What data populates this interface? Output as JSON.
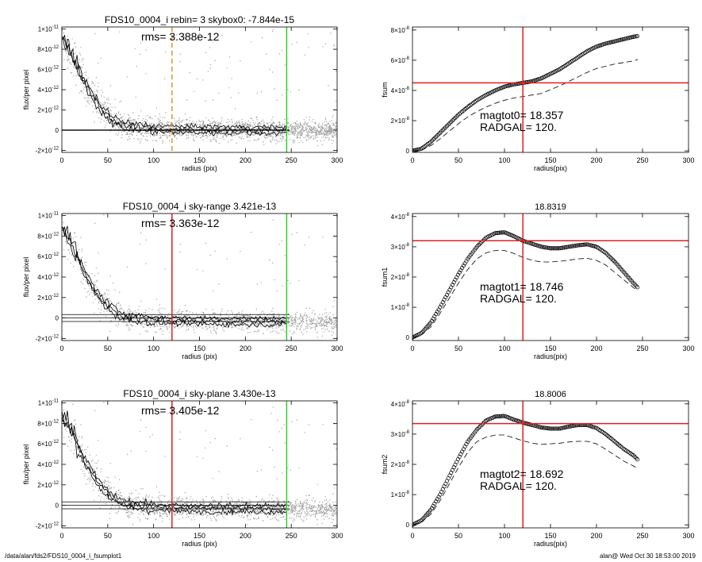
{
  "footer": {
    "path": "/data/alan/fds2/FDS10_0004_i_fsumplot1",
    "user_time": "alan@  Wed Oct 30 18:53:00 2019"
  },
  "colors": {
    "scatter": "#a0a0a0",
    "profile": "#000000",
    "orange_marker": "#e8902a",
    "red_marker": "#e02020",
    "green_marker": "#30d030",
    "dashed_curve": "#000000"
  },
  "chart_data": [
    {
      "id": "profile0",
      "type": "scatter",
      "title": "FDS10_0004_i rebin= 3    skybox0: -7.844e-15",
      "annotation": "rms= 3.388e-12",
      "xlabel": "radius (pix)",
      "ylabel": "flux/per pixel",
      "xlim": [
        0,
        300
      ],
      "ylim": [
        -2.2e-12,
        1.02e-11
      ],
      "xticks": [
        "0",
        "50",
        "100",
        "150",
        "200",
        "250",
        "300"
      ],
      "yticks": [
        {
          "v": -2e-12,
          "label": "-2×10",
          "exp": "-12"
        },
        {
          "v": 0,
          "label": "0",
          "exp": ""
        },
        {
          "v": 2e-12,
          "label": "2×10",
          "exp": "-12"
        },
        {
          "v": 4e-12,
          "label": "4×10",
          "exp": "-12"
        },
        {
          "v": 6e-12,
          "label": "6×10",
          "exp": "-12"
        },
        {
          "v": 8e-12,
          "label": "8×10",
          "exp": "-12"
        },
        {
          "v": 1e-11,
          "label": "1×10",
          "exp": "-11"
        }
      ],
      "profile": {
        "x": [
          0,
          5,
          10,
          15,
          20,
          25,
          30,
          35,
          40,
          45,
          50,
          55,
          60,
          65,
          70,
          80,
          90,
          100,
          110,
          120,
          140,
          160,
          180,
          200,
          220,
          245
        ],
        "y": [
          9.1e-12,
          8.6e-12,
          7.6e-12,
          6.6e-12,
          5.6e-12,
          4.6e-12,
          3.9e-12,
          3.1e-12,
          2.5e-12,
          1.9e-12,
          1.5e-12,
          1.1e-12,
          8e-13,
          6e-13,
          4e-13,
          3e-13,
          2e-13,
          1.5e-13,
          1e-13,
          1e-13,
          5e-14,
          5e-14,
          3e-14,
          2e-14,
          1e-14,
          0
        ]
      },
      "sky_lines": [
        0
      ],
      "vlines": [
        {
          "x": 120,
          "color": "orange",
          "style": "dashed"
        },
        {
          "x": 245,
          "color": "green",
          "style": "solid"
        }
      ]
    },
    {
      "id": "fsum0",
      "type": "scatter",
      "title": "",
      "annotations": [
        "magtot0=  18.357",
        "RADGAL=    120."
      ],
      "xlabel": "radius(pix)",
      "ylabel": "fsum",
      "xlim": [
        0,
        300
      ],
      "ylim": [
        -1e-09,
        8.2e-08
      ],
      "xticks": [
        "0",
        "50",
        "100",
        "150",
        "200",
        "250",
        "300"
      ],
      "yticks": [
        {
          "v": 0,
          "label": "0",
          "exp": ""
        },
        {
          "v": 2e-08,
          "label": "2×10",
          "exp": "-8"
        },
        {
          "v": 4e-08,
          "label": "4×10",
          "exp": "-8"
        },
        {
          "v": 6e-08,
          "label": "6×10",
          "exp": "-8"
        },
        {
          "v": 8e-08,
          "label": "8×10",
          "exp": "-8"
        }
      ],
      "curve": {
        "x": [
          0,
          10,
          20,
          30,
          40,
          50,
          60,
          70,
          80,
          90,
          100,
          110,
          120,
          130,
          140,
          150,
          160,
          170,
          180,
          190,
          200,
          210,
          220,
          230,
          240,
          245
        ],
        "y": [
          0,
          1.5e-09,
          6e-09,
          1.2e-08,
          1.8e-08,
          2.4e-08,
          2.9e-08,
          3.35e-08,
          3.7e-08,
          4e-08,
          4.25e-08,
          4.4e-08,
          4.5e-08,
          4.6e-08,
          4.8e-08,
          5.1e-08,
          5.4e-08,
          5.8e-08,
          6.2e-08,
          6.6e-08,
          6.9e-08,
          7.1e-08,
          7.25e-08,
          7.4e-08,
          7.55e-08,
          7.6e-08
        ]
      },
      "dashed": {
        "x": [
          0,
          10,
          20,
          30,
          40,
          50,
          60,
          70,
          80,
          90,
          100,
          110,
          120,
          130,
          140,
          150,
          160,
          170,
          180,
          190,
          200,
          210,
          220,
          230,
          240,
          245
        ],
        "y": [
          0,
          5e-10,
          3.5e-09,
          8e-09,
          1.3e-08,
          1.8e-08,
          2.25e-08,
          2.6e-08,
          2.9e-08,
          3.15e-08,
          3.35e-08,
          3.5e-08,
          3.6e-08,
          3.7e-08,
          3.8e-08,
          4.05e-08,
          4.3e-08,
          4.6e-08,
          4.9e-08,
          5.2e-08,
          5.45e-08,
          5.6e-08,
          5.75e-08,
          5.85e-08,
          5.95e-08,
          6.05e-08
        ]
      },
      "vline": 120,
      "hline": 4.5e-08
    },
    {
      "id": "profile1",
      "type": "scatter",
      "title": "FDS10_0004_i sky-range  3.421e-13",
      "annotation": "rms= 3.363e-12",
      "xlabel": "radius (pix)",
      "ylabel": "flux/per pixel",
      "xlim": [
        0,
        300
      ],
      "ylim": [
        -2.2e-12,
        1.02e-11
      ],
      "xticks": [
        "0",
        "50",
        "100",
        "150",
        "200",
        "250",
        "300"
      ],
      "yticks": [
        {
          "v": -2e-12,
          "label": "-2×10",
          "exp": "-12"
        },
        {
          "v": 0,
          "label": "0",
          "exp": ""
        },
        {
          "v": 2e-12,
          "label": "2×10",
          "exp": "-12"
        },
        {
          "v": 4e-12,
          "label": "4×10",
          "exp": "-12"
        },
        {
          "v": 6e-12,
          "label": "6×10",
          "exp": "-12"
        },
        {
          "v": 8e-12,
          "label": "8×10",
          "exp": "-12"
        },
        {
          "v": 1e-11,
          "label": "1×10",
          "exp": "-11"
        }
      ],
      "profile": {
        "x": [
          0,
          5,
          10,
          15,
          20,
          25,
          30,
          35,
          40,
          45,
          50,
          55,
          60,
          65,
          70,
          80,
          90,
          100,
          110,
          120,
          140,
          160,
          180,
          200,
          220,
          245
        ],
        "y": [
          8.8e-12,
          8.2e-12,
          7.3e-12,
          6.3e-12,
          5.3e-12,
          4.3e-12,
          3.6e-12,
          2.8e-12,
          2.2e-12,
          1.6e-12,
          1.2e-12,
          8e-13,
          5e-13,
          3e-13,
          1e-13,
          0,
          -1e-13,
          -2e-13,
          -2e-13,
          -2.5e-13,
          -3e-13,
          -3e-13,
          -3.2e-13,
          -3.3e-13,
          -3.4e-13,
          -3.4e-13
        ]
      },
      "sky_lines": [
        3.4e-13,
        0,
        -3.4e-13
      ],
      "vlines": [
        {
          "x": 120,
          "color": "red",
          "style": "solid"
        },
        {
          "x": 245,
          "color": "green",
          "style": "solid"
        }
      ]
    },
    {
      "id": "fsum1",
      "type": "scatter",
      "title": "18.8319",
      "annotations": [
        "magtot1=  18.746",
        "RADGAL=    120."
      ],
      "xlabel": "radius(pix)",
      "ylabel": "fsum1",
      "xlim": [
        0,
        300
      ],
      "ylim": [
        -1e-09,
        4.1e-08
      ],
      "xticks": [
        "0",
        "50",
        "100",
        "150",
        "200",
        "250",
        "300"
      ],
      "yticks": [
        {
          "v": 0,
          "label": "0",
          "exp": ""
        },
        {
          "v": 1e-08,
          "label": "1×10",
          "exp": "-8"
        },
        {
          "v": 2e-08,
          "label": "2×10",
          "exp": "-8"
        },
        {
          "v": 3e-08,
          "label": "3×10",
          "exp": "-8"
        },
        {
          "v": 4e-08,
          "label": "4×10",
          "exp": "-8"
        }
      ],
      "curve": {
        "x": [
          0,
          10,
          20,
          30,
          40,
          50,
          60,
          70,
          80,
          90,
          100,
          110,
          120,
          130,
          140,
          150,
          160,
          170,
          180,
          190,
          200,
          210,
          220,
          230,
          240,
          245
        ],
        "y": [
          0,
          1.5e-09,
          5e-09,
          1e-08,
          1.55e-08,
          2.1e-08,
          2.6e-08,
          3e-08,
          3.3e-08,
          3.45e-08,
          3.48e-08,
          3.35e-08,
          3.2e-08,
          3.1e-08,
          3e-08,
          2.95e-08,
          2.95e-08,
          3e-08,
          3.05e-08,
          3.08e-08,
          3e-08,
          2.8e-08,
          2.5e-08,
          2.15e-08,
          1.8e-08,
          1.65e-08
        ]
      },
      "dashed": {
        "x": [
          0,
          10,
          20,
          30,
          40,
          50,
          60,
          70,
          80,
          90,
          100,
          110,
          120,
          130,
          140,
          150,
          160,
          170,
          180,
          190,
          200,
          210,
          220,
          230,
          240,
          245
        ],
        "y": [
          0,
          1e-09,
          3.5e-09,
          8e-09,
          1.3e-08,
          1.8e-08,
          2.25e-08,
          2.6e-08,
          2.8e-08,
          2.88e-08,
          2.88e-08,
          2.78e-08,
          2.65e-08,
          2.55e-08,
          2.5e-08,
          2.5e-08,
          2.52e-08,
          2.56e-08,
          2.6e-08,
          2.62e-08,
          2.55e-08,
          2.4e-08,
          2.15e-08,
          1.9e-08,
          1.65e-08,
          1.55e-08
        ]
      },
      "vline": 120,
      "hline": 3.2e-08
    },
    {
      "id": "profile2",
      "type": "scatter",
      "title": "FDS10_0004_i sky-plane  3.430e-13",
      "annotation": "rms= 3.405e-12",
      "xlabel": "radius (pix)",
      "ylabel": "flux/per pixel",
      "xlim": [
        0,
        300
      ],
      "ylim": [
        -2.2e-12,
        1.02e-11
      ],
      "xticks": [
        "0",
        "50",
        "100",
        "150",
        "200",
        "250",
        "300"
      ],
      "yticks": [
        {
          "v": -2e-12,
          "label": "-2×10",
          "exp": "-12"
        },
        {
          "v": 0,
          "label": "0",
          "exp": ""
        },
        {
          "v": 2e-12,
          "label": "2×10",
          "exp": "-12"
        },
        {
          "v": 4e-12,
          "label": "4×10",
          "exp": "-12"
        },
        {
          "v": 6e-12,
          "label": "6×10",
          "exp": "-12"
        },
        {
          "v": 8e-12,
          "label": "8×10",
          "exp": "-12"
        },
        {
          "v": 1e-11,
          "label": "1×10",
          "exp": "-11"
        }
      ],
      "profile": {
        "x": [
          0,
          5,
          10,
          15,
          20,
          25,
          30,
          35,
          40,
          45,
          50,
          55,
          60,
          65,
          70,
          80,
          90,
          100,
          110,
          120,
          140,
          160,
          180,
          200,
          220,
          245
        ],
        "y": [
          8.8e-12,
          8.2e-12,
          7.3e-12,
          6.3e-12,
          5.3e-12,
          4.3e-12,
          3.6e-12,
          2.8e-12,
          2.2e-12,
          1.6e-12,
          1.2e-12,
          8e-13,
          5e-13,
          3e-13,
          1e-13,
          0,
          -1e-13,
          -2e-13,
          -2e-13,
          -2.5e-13,
          -3e-13,
          -3e-13,
          -3.2e-13,
          -3.3e-13,
          -3.4e-13,
          -3.4e-13
        ]
      },
      "sky_lines": [
        3.4e-13,
        0,
        -3.4e-13
      ],
      "vlines": [
        {
          "x": 120,
          "color": "red",
          "style": "solid"
        },
        {
          "x": 245,
          "color": "green",
          "style": "solid"
        }
      ]
    },
    {
      "id": "fsum2",
      "type": "scatter",
      "title": "18.8006",
      "annotations": [
        "magtot2=  18.692",
        "RADGAL=    120."
      ],
      "xlabel": "radius(pix)",
      "ylabel": "fsum2",
      "xlim": [
        0,
        300
      ],
      "ylim": [
        -1e-09,
        4.1e-08
      ],
      "xticks": [
        "0",
        "50",
        "100",
        "150",
        "200",
        "250",
        "300"
      ],
      "yticks": [
        {
          "v": 0,
          "label": "0",
          "exp": ""
        },
        {
          "v": 1e-08,
          "label": "1×10",
          "exp": "-8"
        },
        {
          "v": 2e-08,
          "label": "2×10",
          "exp": "-8"
        },
        {
          "v": 3e-08,
          "label": "3×10",
          "exp": "-8"
        },
        {
          "v": 4e-08,
          "label": "4×10",
          "exp": "-8"
        }
      ],
      "curve": {
        "x": [
          0,
          10,
          20,
          30,
          40,
          50,
          60,
          70,
          80,
          90,
          100,
          110,
          120,
          130,
          140,
          150,
          160,
          170,
          180,
          190,
          200,
          210,
          220,
          230,
          240,
          245
        ],
        "y": [
          0,
          1.5e-09,
          5e-09,
          1e-08,
          1.6e-08,
          2.2e-08,
          2.75e-08,
          3.15e-08,
          3.45e-08,
          3.58e-08,
          3.6e-08,
          3.48e-08,
          3.38e-08,
          3.3e-08,
          3.22e-08,
          3.18e-08,
          3.18e-08,
          3.25e-08,
          3.3e-08,
          3.3e-08,
          3.2e-08,
          3e-08,
          2.75e-08,
          2.5e-08,
          2.3e-08,
          2.15e-08
        ]
      },
      "dashed": {
        "x": [
          0,
          10,
          20,
          30,
          40,
          50,
          60,
          70,
          80,
          90,
          100,
          110,
          120,
          130,
          140,
          150,
          160,
          170,
          180,
          190,
          200,
          210,
          220,
          230,
          240,
          245
        ],
        "y": [
          0,
          1e-09,
          3.5e-09,
          8e-09,
          1.35e-08,
          1.9e-08,
          2.4e-08,
          2.75e-08,
          2.9e-08,
          2.97e-08,
          2.97e-08,
          2.88e-08,
          2.78e-08,
          2.7e-08,
          2.66e-08,
          2.68e-08,
          2.7e-08,
          2.74e-08,
          2.76e-08,
          2.76e-08,
          2.68e-08,
          2.5e-08,
          2.3e-08,
          2.1e-08,
          1.95e-08,
          1.85e-08
        ]
      },
      "vline": 120,
      "hline": 3.35e-08
    }
  ]
}
